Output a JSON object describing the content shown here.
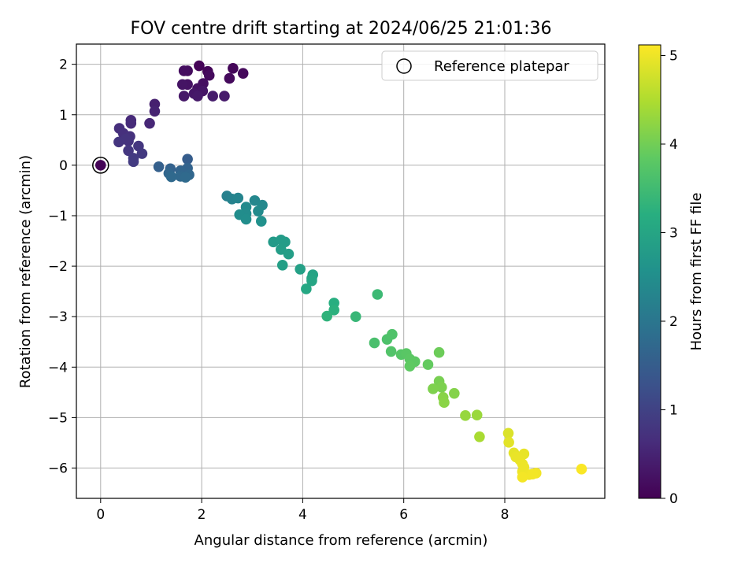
{
  "chart_data": {
    "type": "scatter",
    "title": "FOV centre drift starting at 2024/06/25 21:01:36",
    "xlabel": "Angular distance from reference (arcmin)",
    "ylabel": "Rotation from reference (arcmin)",
    "xlim": [
      -0.48,
      9.98
    ],
    "ylim": [
      -6.6,
      2.4
    ],
    "xticks": [
      0,
      2,
      4,
      6,
      8
    ],
    "yticks": [
      2,
      1,
      0,
      -1,
      -2,
      -3,
      -4,
      -5,
      -6
    ],
    "tick_labels": {
      "x": [
        "0",
        "2",
        "4",
        "6",
        "8"
      ],
      "y": [
        "2",
        "1",
        "0",
        "−1",
        "−2",
        "−3",
        "−4",
        "−5",
        "−6"
      ]
    },
    "grid": true,
    "legend": {
      "placement": "top-right",
      "entries": [
        "Reference platepar"
      ]
    },
    "colorbar": {
      "label": "Hours from first FF file",
      "min": 0,
      "max": 5.12,
      "ticks": [
        0,
        1,
        2,
        3,
        4,
        5
      ],
      "tick_labels": [
        "0",
        "1",
        "2",
        "3",
        "4",
        "5"
      ],
      "colormap": "viridis"
    },
    "reference_point": {
      "x": 0,
      "y": 0,
      "c": 0.05
    },
    "points": [
      {
        "x": 1.95,
        "y": 1.97,
        "c": 0.05
      },
      {
        "x": 2.12,
        "y": 1.86,
        "c": 0.07
      },
      {
        "x": 2.62,
        "y": 1.92,
        "c": 0.09
      },
      {
        "x": 2.82,
        "y": 1.82,
        "c": 0.11
      },
      {
        "x": 2.55,
        "y": 1.72,
        "c": 0.13
      },
      {
        "x": 2.15,
        "y": 1.78,
        "c": 0.15
      },
      {
        "x": 1.72,
        "y": 1.87,
        "c": 0.17
      },
      {
        "x": 1.65,
        "y": 1.87,
        "c": 0.19
      },
      {
        "x": 2.03,
        "y": 1.62,
        "c": 0.21
      },
      {
        "x": 1.92,
        "y": 1.52,
        "c": 0.23
      },
      {
        "x": 1.72,
        "y": 1.6,
        "c": 0.25
      },
      {
        "x": 1.62,
        "y": 1.6,
        "c": 0.27
      },
      {
        "x": 2.02,
        "y": 1.47,
        "c": 0.29
      },
      {
        "x": 1.85,
        "y": 1.42,
        "c": 0.31
      },
      {
        "x": 1.65,
        "y": 1.37,
        "c": 0.33
      },
      {
        "x": 1.92,
        "y": 1.37,
        "c": 0.35
      },
      {
        "x": 2.45,
        "y": 1.37,
        "c": 0.37
      },
      {
        "x": 2.22,
        "y": 1.37,
        "c": 0.39
      },
      {
        "x": 1.07,
        "y": 1.21,
        "c": 0.45
      },
      {
        "x": 1.07,
        "y": 1.07,
        "c": 0.5
      },
      {
        "x": 0.97,
        "y": 0.83,
        "c": 0.55
      },
      {
        "x": 0.6,
        "y": 0.89,
        "c": 0.6
      },
      {
        "x": 0.6,
        "y": 0.83,
        "c": 0.62
      },
      {
        "x": 0.37,
        "y": 0.73,
        "c": 0.68
      },
      {
        "x": 0.45,
        "y": 0.63,
        "c": 0.7
      },
      {
        "x": 0.58,
        "y": 0.57,
        "c": 0.72
      },
      {
        "x": 0.55,
        "y": 0.48,
        "c": 0.74
      },
      {
        "x": 0.5,
        "y": 0.52,
        "c": 0.76
      },
      {
        "x": 0.36,
        "y": 0.46,
        "c": 0.78
      },
      {
        "x": 0.75,
        "y": 0.38,
        "c": 0.8
      },
      {
        "x": 0.55,
        "y": 0.29,
        "c": 0.82
      },
      {
        "x": 0.82,
        "y": 0.23,
        "c": 0.84
      },
      {
        "x": 0.65,
        "y": 0.14,
        "c": 0.86
      },
      {
        "x": 0.65,
        "y": 0.07,
        "c": 0.88
      },
      {
        "x": 1.72,
        "y": 0.12,
        "c": 1.5
      },
      {
        "x": 1.15,
        "y": -0.03,
        "c": 1.55
      },
      {
        "x": 1.38,
        "y": -0.07,
        "c": 1.6
      },
      {
        "x": 1.72,
        "y": -0.06,
        "c": 1.62
      },
      {
        "x": 1.58,
        "y": -0.11,
        "c": 1.64
      },
      {
        "x": 1.62,
        "y": -0.16,
        "c": 1.66
      },
      {
        "x": 1.35,
        "y": -0.16,
        "c": 1.68
      },
      {
        "x": 1.75,
        "y": -0.19,
        "c": 1.7
      },
      {
        "x": 1.58,
        "y": -0.22,
        "c": 1.72
      },
      {
        "x": 1.4,
        "y": -0.23,
        "c": 1.74
      },
      {
        "x": 1.68,
        "y": -0.24,
        "c": 1.76
      },
      {
        "x": 2.5,
        "y": -0.61,
        "c": 2.2
      },
      {
        "x": 2.6,
        "y": -0.67,
        "c": 2.25
      },
      {
        "x": 2.72,
        "y": -0.65,
        "c": 2.3
      },
      {
        "x": 3.05,
        "y": -0.7,
        "c": 2.35
      },
      {
        "x": 3.2,
        "y": -0.79,
        "c": 2.4
      },
      {
        "x": 2.88,
        "y": -0.83,
        "c": 2.42
      },
      {
        "x": 3.12,
        "y": -0.91,
        "c": 2.44
      },
      {
        "x": 2.88,
        "y": -0.96,
        "c": 2.46
      },
      {
        "x": 2.75,
        "y": -0.98,
        "c": 2.48
      },
      {
        "x": 2.88,
        "y": -1.07,
        "c": 2.5
      },
      {
        "x": 3.18,
        "y": -1.11,
        "c": 2.55
      },
      {
        "x": 3.42,
        "y": -1.52,
        "c": 2.75
      },
      {
        "x": 3.57,
        "y": -1.48,
        "c": 2.78
      },
      {
        "x": 3.65,
        "y": -1.52,
        "c": 2.8
      },
      {
        "x": 3.57,
        "y": -1.67,
        "c": 2.82
      },
      {
        "x": 3.72,
        "y": -1.76,
        "c": 2.84
      },
      {
        "x": 3.6,
        "y": -1.98,
        "c": 2.86
      },
      {
        "x": 3.95,
        "y": -2.06,
        "c": 2.9
      },
      {
        "x": 4.2,
        "y": -2.17,
        "c": 2.95
      },
      {
        "x": 4.18,
        "y": -2.24,
        "c": 2.97
      },
      {
        "x": 4.18,
        "y": -2.29,
        "c": 3.0
      },
      {
        "x": 4.07,
        "y": -2.45,
        "c": 3.05
      },
      {
        "x": 4.62,
        "y": -2.73,
        "c": 3.2
      },
      {
        "x": 4.62,
        "y": -2.87,
        "c": 3.25
      },
      {
        "x": 4.48,
        "y": -2.99,
        "c": 3.3
      },
      {
        "x": 5.05,
        "y": -3.0,
        "c": 3.4
      },
      {
        "x": 5.48,
        "y": -2.56,
        "c": 3.45
      },
      {
        "x": 5.42,
        "y": -3.52,
        "c": 3.6
      },
      {
        "x": 5.67,
        "y": -3.45,
        "c": 3.65
      },
      {
        "x": 5.77,
        "y": -3.35,
        "c": 3.67
      },
      {
        "x": 5.75,
        "y": -3.69,
        "c": 3.7
      },
      {
        "x": 5.95,
        "y": -3.75,
        "c": 3.75
      },
      {
        "x": 6.05,
        "y": -3.73,
        "c": 3.78
      },
      {
        "x": 6.12,
        "y": -3.84,
        "c": 3.8
      },
      {
        "x": 6.22,
        "y": -3.89,
        "c": 3.82
      },
      {
        "x": 6.12,
        "y": -3.98,
        "c": 3.84
      },
      {
        "x": 6.48,
        "y": -3.95,
        "c": 3.88
      },
      {
        "x": 6.7,
        "y": -3.71,
        "c": 3.95
      },
      {
        "x": 6.7,
        "y": -4.28,
        "c": 4.05
      },
      {
        "x": 6.75,
        "y": -4.4,
        "c": 4.08
      },
      {
        "x": 6.58,
        "y": -4.43,
        "c": 4.1
      },
      {
        "x": 7.0,
        "y": -4.52,
        "c": 4.15
      },
      {
        "x": 6.78,
        "y": -4.6,
        "c": 4.18
      },
      {
        "x": 6.8,
        "y": -4.7,
        "c": 4.2
      },
      {
        "x": 7.22,
        "y": -4.96,
        "c": 4.3
      },
      {
        "x": 7.45,
        "y": -4.95,
        "c": 4.33
      },
      {
        "x": 7.5,
        "y": -5.38,
        "c": 4.45
      },
      {
        "x": 8.07,
        "y": -5.31,
        "c": 4.85
      },
      {
        "x": 8.08,
        "y": -5.49,
        "c": 4.9
      },
      {
        "x": 8.18,
        "y": -5.7,
        "c": 4.93
      },
      {
        "x": 8.38,
        "y": -5.72,
        "c": 4.95
      },
      {
        "x": 8.22,
        "y": -5.78,
        "c": 4.96
      },
      {
        "x": 8.3,
        "y": -5.84,
        "c": 4.97
      },
      {
        "x": 8.35,
        "y": -5.92,
        "c": 4.98
      },
      {
        "x": 8.38,
        "y": -5.98,
        "c": 4.99
      },
      {
        "x": 8.35,
        "y": -6.07,
        "c": 5.0
      },
      {
        "x": 8.48,
        "y": -6.13,
        "c": 5.02
      },
      {
        "x": 8.62,
        "y": -6.1,
        "c": 5.03
      },
      {
        "x": 8.55,
        "y": -6.12,
        "c": 5.04
      },
      {
        "x": 8.35,
        "y": -6.18,
        "c": 5.05
      },
      {
        "x": 9.52,
        "y": -6.02,
        "c": 5.1
      }
    ]
  }
}
